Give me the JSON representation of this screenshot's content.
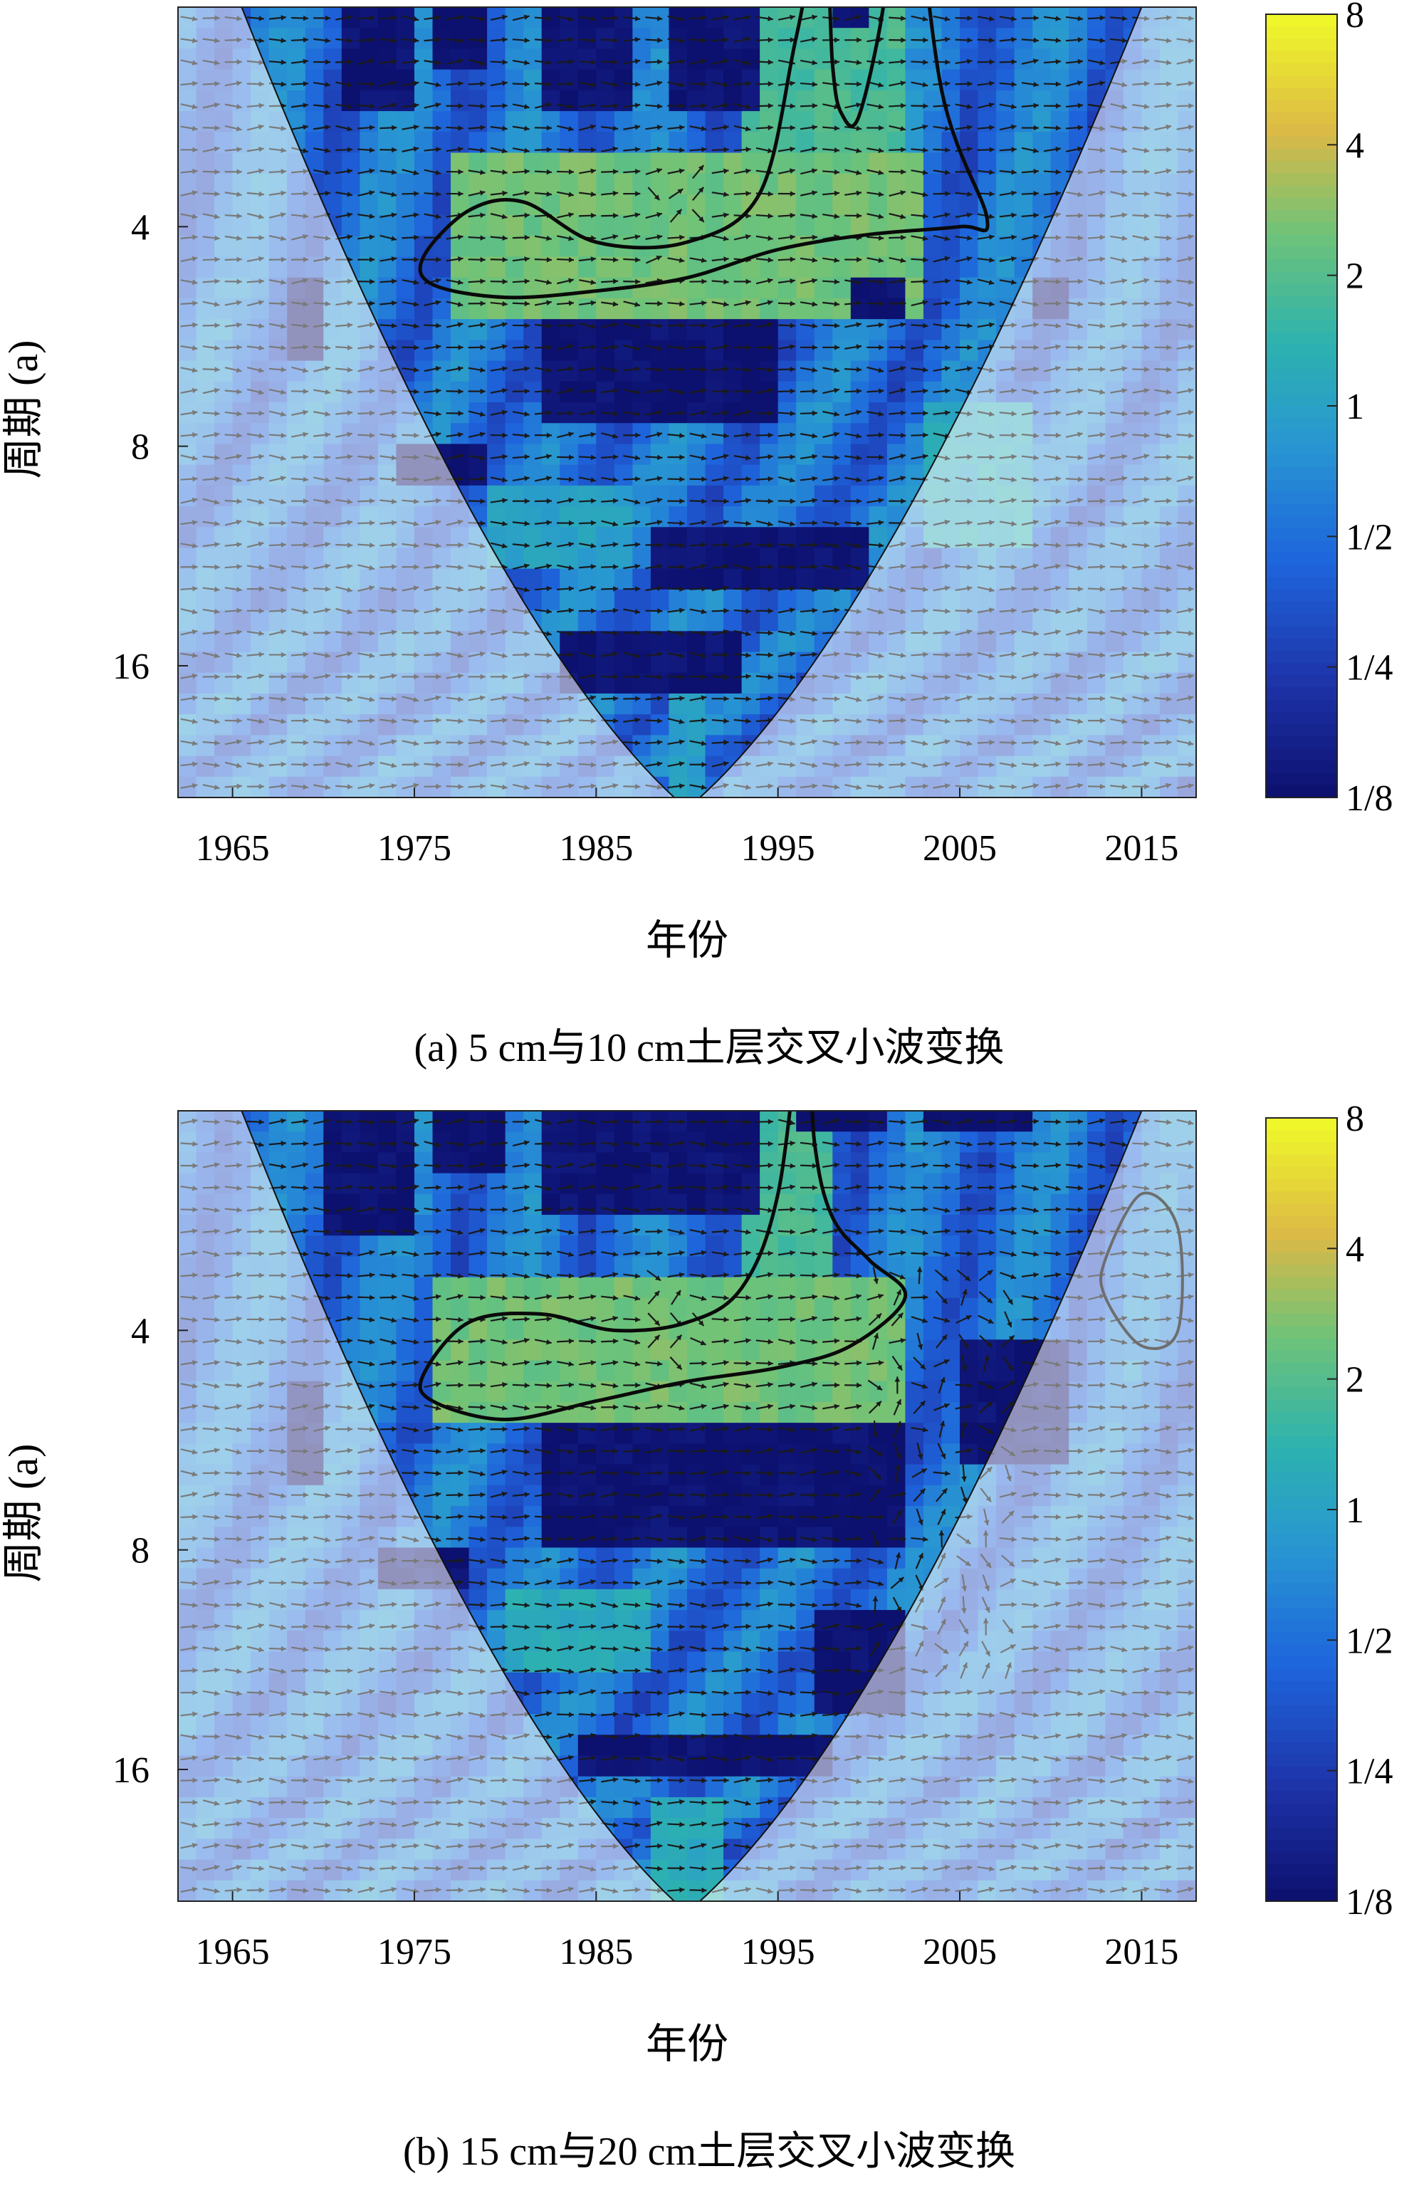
{
  "chart_data": [
    {
      "type": "heatmap",
      "panel_id": "a",
      "caption": "(a) 5 cm与10 cm土层交叉小波变换",
      "xlabel": "年份",
      "ylabel": "周期 (a)",
      "x_ticks": [
        1965,
        1975,
        1985,
        1995,
        2005,
        2015
      ],
      "y_ticks": [
        4,
        8,
        16
      ],
      "xlim": [
        1962,
        2018
      ],
      "ylim_log2": [
        1,
        4.6
      ],
      "colorbar": {
        "ticks": [
          "8",
          "4",
          "2",
          "1",
          "1/2",
          "1/4",
          "1/8"
        ],
        "values": [
          8,
          4,
          2,
          1,
          0.5,
          0.25,
          0.125
        ]
      },
      "cone_of_influence": {
        "left_edge_year": 1965.5,
        "right_edge_year": 2015,
        "apex_year": 1990
      },
      "significant_contours": [
        {
          "years": [
            1975.5,
            1978,
            1981,
            1985,
            1990,
            1994,
            1996,
            1997.5,
            1998,
            1998.5,
            1999.5,
            2001,
            2000.5,
            2002,
            2004,
            2006.5,
            2005,
            2000,
            1995,
            1990,
            1985,
            1980,
            1976
          ],
          "periods": [
            4.4,
            3.8,
            3.7,
            4.2,
            4.2,
            3.6,
            2.2,
            1.5,
            2.4,
            2.8,
            2.8,
            1.8,
            1.2,
            1.1,
            2.6,
            3.9,
            4.0,
            4.1,
            4.3,
            4.7,
            4.9,
            5.0,
            4.8
          ]
        }
      ],
      "low_power_regions": [
        {
          "x": [
            1966,
            1968
          ],
          "y": [
            1,
            1.5
          ]
        },
        {
          "x": [
            1971,
            1975
          ],
          "y": [
            1.4,
            2.8
          ]
        },
        {
          "x": [
            1976,
            1979
          ],
          "y": [
            1.6,
            2.4
          ]
        },
        {
          "x": [
            1982,
            1987
          ],
          "y": [
            1,
            2.8
          ]
        },
        {
          "x": [
            1989,
            1994
          ],
          "y": [
            1.5,
            2.7
          ]
        },
        {
          "x": [
            1998,
            2000
          ],
          "y": [
            1.5,
            2.2
          ]
        },
        {
          "x": [
            2006,
            2009
          ],
          "y": [
            1,
            1.8
          ]
        },
        {
          "x": [
            1968,
            1970
          ],
          "y": [
            4.6,
            6
          ]
        },
        {
          "x": [
            1999,
            2002
          ],
          "y": [
            4.6,
            5.2
          ]
        },
        {
          "x": [
            2009,
            2011
          ],
          "y": [
            4.6,
            5.2
          ]
        },
        {
          "x": [
            1982,
            1995
          ],
          "y": [
            5.5,
            7.5
          ]
        },
        {
          "x": [
            1974,
            1979
          ],
          "y": [
            7.7,
            9
          ]
        },
        {
          "x": [
            1988,
            2000
          ],
          "y": [
            10.5,
            12.5
          ]
        },
        {
          "x": [
            1983,
            1993
          ],
          "y": [
            14.5,
            17
          ]
        }
      ],
      "high_power_regions": [
        {
          "x": [
            1977,
            2003
          ],
          "y": [
            3.2,
            5.2
          ],
          "level": 2.5
        },
        {
          "x": [
            1993,
            2002
          ],
          "y": [
            1.4,
            3.5
          ],
          "level": 1.8
        },
        {
          "x": [
            2003,
            2009
          ],
          "y": [
            7,
            11
          ],
          "level": 1.2
        },
        {
          "x": [
            1979,
            1987
          ],
          "y": [
            9,
            12
          ],
          "level": 1
        },
        {
          "x": [
            1989,
            1991
          ],
          "y": [
            17,
            24
          ],
          "level": 1
        }
      ]
    },
    {
      "type": "heatmap",
      "panel_id": "b",
      "caption": "(b) 15 cm与20 cm土层交叉小波变换",
      "xlabel": "年份",
      "ylabel": "周期 (a)",
      "x_ticks": [
        1965,
        1975,
        1985,
        1995,
        2005,
        2015
      ],
      "y_ticks": [
        4,
        8,
        16
      ],
      "xlim": [
        1962,
        2018
      ],
      "ylim_log2": [
        1,
        4.6
      ],
      "colorbar": {
        "ticks": [
          "8",
          "4",
          "2",
          "1",
          "1/2",
          "1/4",
          "1/8"
        ],
        "values": [
          8,
          4,
          2,
          1,
          0.5,
          0.25,
          0.125
        ]
      },
      "cone_of_influence": {
        "left_edge_year": 1965.5,
        "right_edge_year": 2015,
        "apex_year": 1990
      },
      "significant_contours": [
        {
          "years": [
            1975.5,
            1978,
            1982,
            1986,
            1990,
            1993,
            1995,
            1996.5,
            1997,
            1998,
            2000,
            2002,
            1999,
            1995,
            1990,
            1985,
            1980,
            1976
          ],
          "periods": [
            4.6,
            3.9,
            3.8,
            4.0,
            3.9,
            3.5,
            2.6,
            1.4,
            2.2,
            2.8,
            3.2,
            3.6,
            4.2,
            4.5,
            4.7,
            5.0,
            5.3,
            5.0
          ]
        }
      ],
      "low_power_regions": [
        {
          "x": [
            1966,
            1968
          ],
          "y": [
            1,
            1.5
          ]
        },
        {
          "x": [
            1970,
            1975
          ],
          "y": [
            1.4,
            3.0
          ]
        },
        {
          "x": [
            1976,
            1980
          ],
          "y": [
            1.3,
            2.4
          ]
        },
        {
          "x": [
            1982,
            1990
          ],
          "y": [
            1,
            2.8
          ]
        },
        {
          "x": [
            1990,
            1994
          ],
          "y": [
            1.5,
            2.7
          ]
        },
        {
          "x": [
            1996,
            2001
          ],
          "y": [
            1.5,
            2.2
          ]
        },
        {
          "x": [
            2003,
            2009
          ],
          "y": [
            1,
            2.2
          ]
        },
        {
          "x": [
            1968,
            1970
          ],
          "y": [
            4.6,
            6.5
          ]
        },
        {
          "x": [
            2005,
            2011
          ],
          "y": [
            4.1,
            6.0
          ]
        },
        {
          "x": [
            1982,
            2002
          ],
          "y": [
            5.5,
            8.0
          ]
        },
        {
          "x": [
            1973,
            1978
          ],
          "y": [
            7.7,
            9.3
          ]
        },
        {
          "x": [
            1997,
            2002
          ],
          "y": [
            9.5,
            13
          ]
        },
        {
          "x": [
            1984,
            1998
          ],
          "y": [
            14.5,
            16
          ]
        }
      ],
      "high_power_regions": [
        {
          "x": [
            1976,
            2002
          ],
          "y": [
            3.3,
            5.4
          ],
          "level": 2.5
        },
        {
          "x": [
            1993,
            1998
          ],
          "y": [
            1.6,
            3.3
          ],
          "level": 1.8
        },
        {
          "x": [
            1980,
            1988
          ],
          "y": [
            9,
            12
          ],
          "level": 1.2
        },
        {
          "x": [
            1988,
            1992
          ],
          "y": [
            17,
            24
          ],
          "level": 1.2
        }
      ],
      "outside_contours": [
        {
          "years": [
            2013,
            2015,
            2017,
            2017,
            2015,
            2013
          ],
          "periods": [
            3.2,
            2.6,
            2.9,
            4.0,
            4.2,
            3.6
          ]
        }
      ]
    }
  ]
}
